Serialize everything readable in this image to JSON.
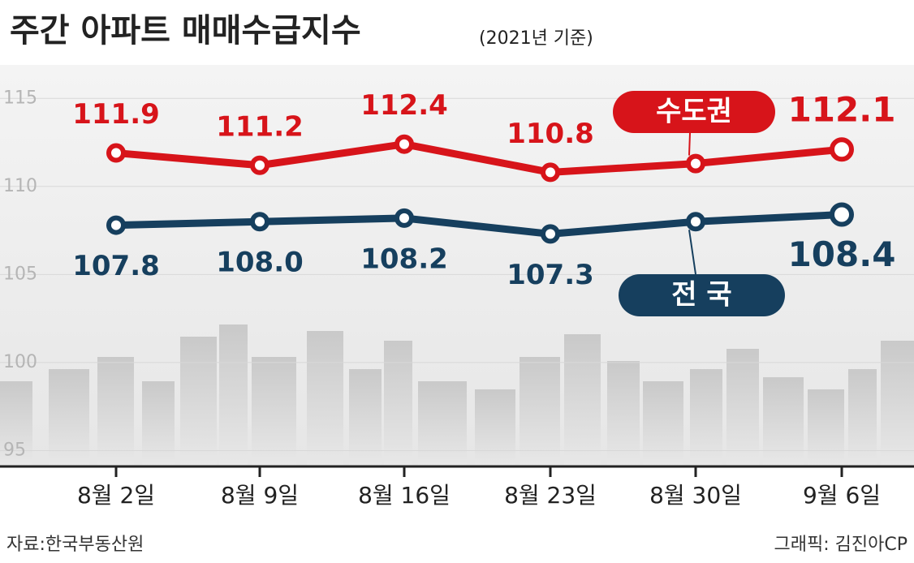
{
  "chart_data": {
    "type": "line",
    "title": "주간 아파트 매매수급지수",
    "subtitle": "(2021년 기준)",
    "categories": [
      "8월 2일",
      "8월 9일",
      "8월 16일",
      "8월 23일",
      "8월 30일",
      "9월 6일"
    ],
    "series": [
      {
        "name": "수도권",
        "color": "#d7141a",
        "values": [
          111.9,
          111.2,
          112.4,
          110.8,
          111.3,
          112.1
        ],
        "value_labels": [
          "111.9",
          "111.2",
          "112.4",
          "110.8",
          null,
          "112.1"
        ]
      },
      {
        "name": "전 국",
        "color": "#163f5e",
        "values": [
          107.8,
          108.0,
          108.2,
          107.3,
          108.0,
          108.4
        ],
        "value_labels": [
          "107.8",
          "108.0",
          "108.2",
          "107.3",
          null,
          "108.4"
        ]
      }
    ],
    "ylim": [
      94.1,
      116.9
    ],
    "yticks": [
      95,
      100,
      105,
      110,
      115
    ],
    "source": "자료:한국부동산원",
    "credit": "그래픽: 김진아CP"
  }
}
